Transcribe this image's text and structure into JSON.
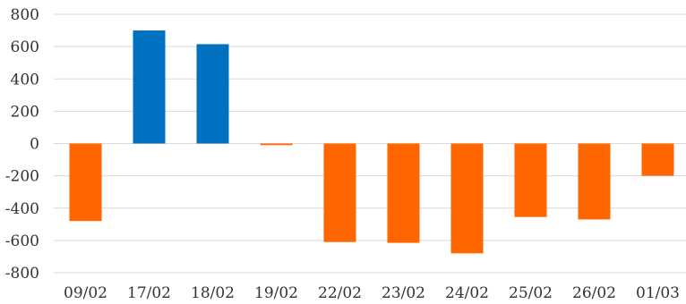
{
  "chart_data": {
    "type": "bar",
    "title": "",
    "xlabel": "",
    "ylabel": "",
    "categories": [
      "09/02",
      "17/02",
      "18/02",
      "19/02",
      "22/02",
      "23/02",
      "24/02",
      "25/02",
      "26/02",
      "01/03"
    ],
    "values": [
      -480,
      700,
      615,
      -10,
      -610,
      -615,
      -680,
      -455,
      -470,
      -200
    ],
    "ylim": [
      -800,
      800
    ],
    "yticks": [
      "800",
      "600",
      "400",
      "200",
      "0",
      "-200",
      "-400",
      "-600",
      "-800"
    ],
    "grid": true,
    "legend": "none",
    "colors": {
      "positive": "#0070c0",
      "negative": "#ff6600",
      "grid": "#d9d9d9",
      "text": "#333333"
    }
  }
}
